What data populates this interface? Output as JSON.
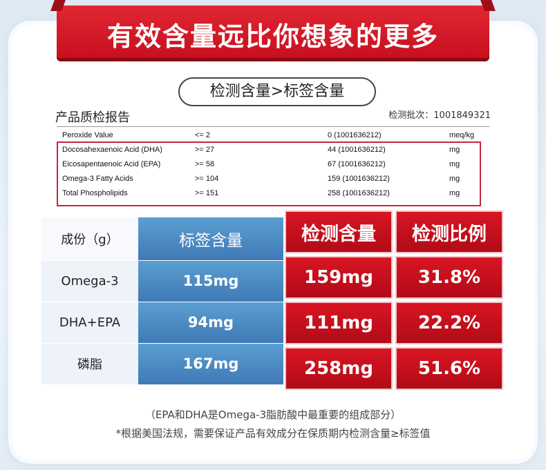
{
  "title": "有效含量远比你想象的更多",
  "pill": "检测含量>标签含量",
  "report_title": "产品质检报告",
  "batch": "检测批次：1001849321",
  "report_rows": [
    {
      "name": "Peroxide Value",
      "spec": "<= 2",
      "result": "0 (1001636212)",
      "unit": "meq/kg"
    },
    {
      "name": "Docosahexaenoic Acid (DHA)",
      "spec": ">= 27",
      "result": "44 (1001636212)",
      "unit": "mg"
    },
    {
      "name": "Eicosapentaenoic Acid (EPA)",
      "spec": ">= 58",
      "result": "67 (1001636212)",
      "unit": "mg"
    },
    {
      "name": "Omega-3 Fatty Acids",
      "spec": ">= 104",
      "result": "159 (1001636212)",
      "unit": "mg"
    },
    {
      "name": "Total Phospholipids",
      "spec": ">= 151",
      "result": "258 (1001636212)",
      "unit": "mg"
    }
  ],
  "table": {
    "headers": [
      "成份（g）",
      "标签含量",
      "检测含量",
      "检测比例"
    ],
    "rows": [
      {
        "name": "Omega-3",
        "label": "115mg",
        "test": "159mg",
        "ratio": "31.8%"
      },
      {
        "name": "DHA+EPA",
        "label": "94mg",
        "test": "111mg",
        "ratio": "22.2%"
      },
      {
        "name": "磷脂",
        "label": "167mg",
        "test": "258mg",
        "ratio": "51.6%"
      }
    ]
  },
  "note1": "（EPA和DHA是Omega-3脂肪酸中最重要的组成部分）",
  "note2": "*根据美国法规，需要保证产品有效成分在保质期内检测含量≥标签值"
}
